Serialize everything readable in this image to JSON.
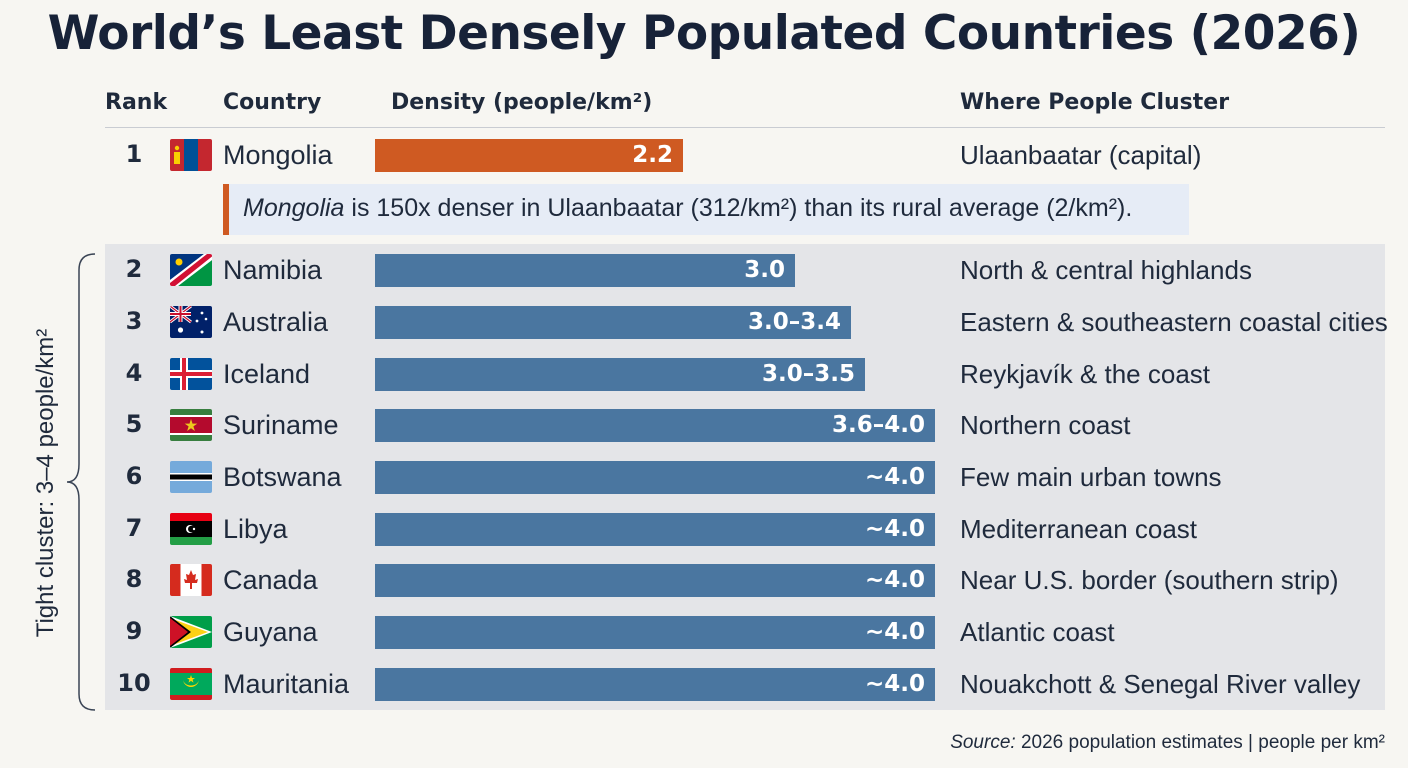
{
  "title": "World’s Least Densely Populated Countries (2026)",
  "headers": {
    "rank": "Rank",
    "country": "Country",
    "density": "Density (people/km²)",
    "cluster": "Where People Cluster"
  },
  "callout": {
    "country": "Mongolia",
    "text": " is 150x denser in Ulaanbaatar (312/km²) than its rural average (2/km²)."
  },
  "side_label": "Tight cluster: 3–4 people/km²",
  "source": {
    "label": "Source:",
    "text": " 2026 population estimates | people per km²"
  },
  "colors": {
    "highlight": "#cf5a22",
    "bar": "#4a76a0",
    "shade": "#e4e5e8"
  },
  "chart_data": {
    "type": "bar",
    "orientation": "horizontal",
    "title": "World’s Least Densely Populated Countries (2026)",
    "xlabel": "Density (people/km²)",
    "xlim": [
      0,
      4.2
    ],
    "categories": [
      "Mongolia",
      "Namibia",
      "Australia",
      "Iceland",
      "Suriname",
      "Botswana",
      "Libya",
      "Canada",
      "Guyana",
      "Mauritania"
    ],
    "values": [
      2.2,
      3.0,
      3.4,
      3.5,
      4.0,
      4.0,
      4.0,
      4.0,
      4.0,
      4.0
    ],
    "rows": [
      {
        "rank": "1",
        "country": "Mongolia",
        "flag": "mongolia-flag-icon",
        "label": "2.2",
        "value": 2.2,
        "cluster": "Ulaanbaatar (capital)",
        "highlight": true
      },
      {
        "rank": "2",
        "country": "Namibia",
        "flag": "namibia-flag-icon",
        "label": "3.0",
        "value": 3.0,
        "cluster": "North & central highlands"
      },
      {
        "rank": "3",
        "country": "Australia",
        "flag": "australia-flag-icon",
        "label": "3.0–3.4",
        "value": 3.4,
        "cluster": "Eastern & southeastern coastal cities"
      },
      {
        "rank": "4",
        "country": "Iceland",
        "flag": "iceland-flag-icon",
        "label": "3.0–3.5",
        "value": 3.5,
        "cluster": "Reykjavík & the coast"
      },
      {
        "rank": "5",
        "country": "Suriname",
        "flag": "suriname-flag-icon",
        "label": "3.6–4.0",
        "value": 4.0,
        "cluster": "Northern coast"
      },
      {
        "rank": "6",
        "country": "Botswana",
        "flag": "botswana-flag-icon",
        "label": "~4.0",
        "value": 4.0,
        "cluster": "Few main urban towns"
      },
      {
        "rank": "7",
        "country": "Libya",
        "flag": "libya-flag-icon",
        "label": "~4.0",
        "value": 4.0,
        "cluster": "Mediterranean coast"
      },
      {
        "rank": "8",
        "country": "Canada",
        "flag": "canada-flag-icon",
        "label": "~4.0",
        "value": 4.0,
        "cluster": "Near U.S. border (southern strip)"
      },
      {
        "rank": "9",
        "country": "Guyana",
        "flag": "guyana-flag-icon",
        "label": "~4.0",
        "value": 4.0,
        "cluster": "Atlantic coast"
      },
      {
        "rank": "10",
        "country": "Mauritania",
        "flag": "mauritania-flag-icon",
        "label": "~4.0",
        "value": 4.0,
        "cluster": "Nouakchott & Senegal River valley"
      }
    ]
  }
}
